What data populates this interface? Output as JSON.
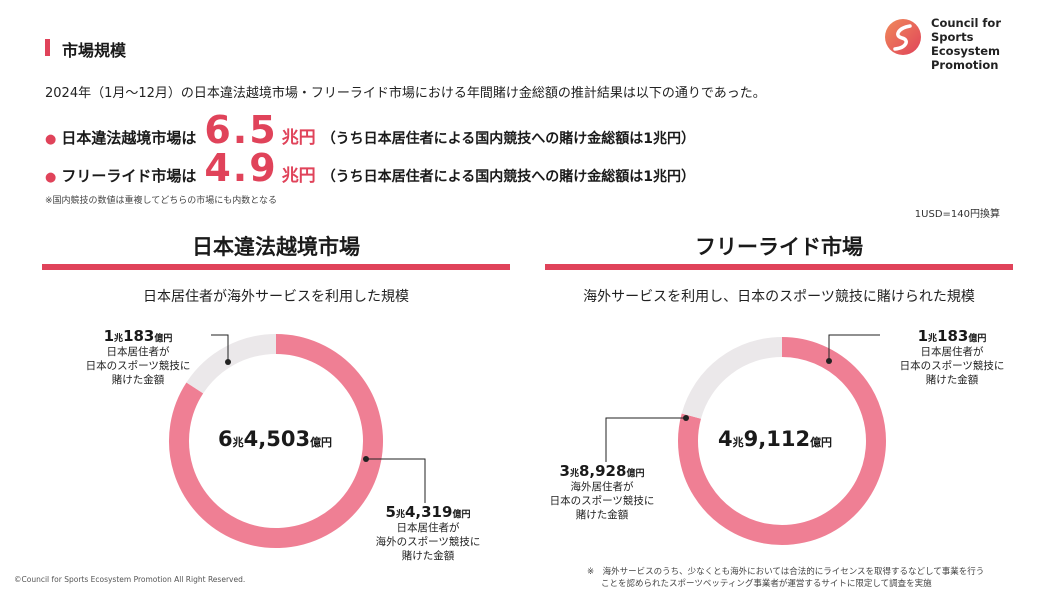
{
  "header": {
    "section_title": "市場規模",
    "logo_lines": [
      "Council for",
      "Sports Ecosystem",
      "Promotion"
    ]
  },
  "intro": "2024年（1月～12月）の日本違法越境市場・フリーライド市場における年間賭け金総額の推計結果は以下の通りであった。",
  "markets": [
    {
      "bullet": "●",
      "label": "日本違法越境市場は",
      "value": "6.5",
      "unit": "兆円",
      "note": "（うち日本居住者による国内競技への賭け金総額は1兆円）"
    },
    {
      "bullet": "●",
      "label": "フリーライド市場は",
      "value": "4.9",
      "unit": "兆円",
      "note": "（うち日本居住者による国内競技への賭け金総額は1兆円）"
    }
  ],
  "footnote_overlap": "※国内競技の数値は重複してどちらの市場にも内数となる",
  "exchange_rate": "1USD=140円換算",
  "chart_data": [
    {
      "type": "pie",
      "title": "日本違法越境市場",
      "subtitle": "日本居住者が海外サービスを利用した規模",
      "total": {
        "major": "6",
        "major_unit": "兆",
        "minor": "4,503",
        "minor_unit": "億円"
      },
      "units": "億円",
      "slices": [
        {
          "value": 54319,
          "color": "#ef7f94",
          "major": "5",
          "major_unit": "兆",
          "minor": "4,319",
          "minor_unit": "億円",
          "desc": [
            "日本居住者が",
            "海外のスポーツ競技に",
            "賭けた金額"
          ]
        },
        {
          "value": 10183,
          "color": "#ebe8ea",
          "major": "1",
          "major_unit": "兆",
          "minor": "183",
          "minor_unit": "億円",
          "desc": [
            "日本居住者が",
            "日本のスポーツ競技に",
            "賭けた金額"
          ]
        }
      ]
    },
    {
      "type": "pie",
      "title": "フリーライド市場",
      "subtitle": "海外サービスを利用し、日本のスポーツ競技に賭けられた規模",
      "total": {
        "major": "4",
        "major_unit": "兆",
        "minor": "9,112",
        "minor_unit": "億円"
      },
      "units": "億円",
      "slices": [
        {
          "value": 38928,
          "color": "#ef7f94",
          "major": "3",
          "major_unit": "兆",
          "minor": "8,928",
          "minor_unit": "億円",
          "desc": [
            "海外居住者が",
            "日本のスポーツ競技に",
            "賭けた金額"
          ]
        },
        {
          "value": 10183,
          "color": "#ebe8ea",
          "major": "1",
          "major_unit": "兆",
          "minor": "183",
          "minor_unit": "億円",
          "desc": [
            "日本居住者が",
            "日本のスポーツ競技に",
            "賭けた金額"
          ]
        }
      ]
    }
  ],
  "footnote_bottom": [
    "※　海外サービスのうち、少なくとも海外においては合法的にライセンスを取得するなどして事業を行う",
    "ことを認められたスポーツベッティング事業者が運営するサイトに限定して調査を実施"
  ],
  "copyright": "©Council for Sports Ecosystem Promotion All Right Reserved.",
  "colors": {
    "accent": "#e0435a",
    "slice_pink": "#ef7f94",
    "slice_gray": "#ebe8ea"
  }
}
